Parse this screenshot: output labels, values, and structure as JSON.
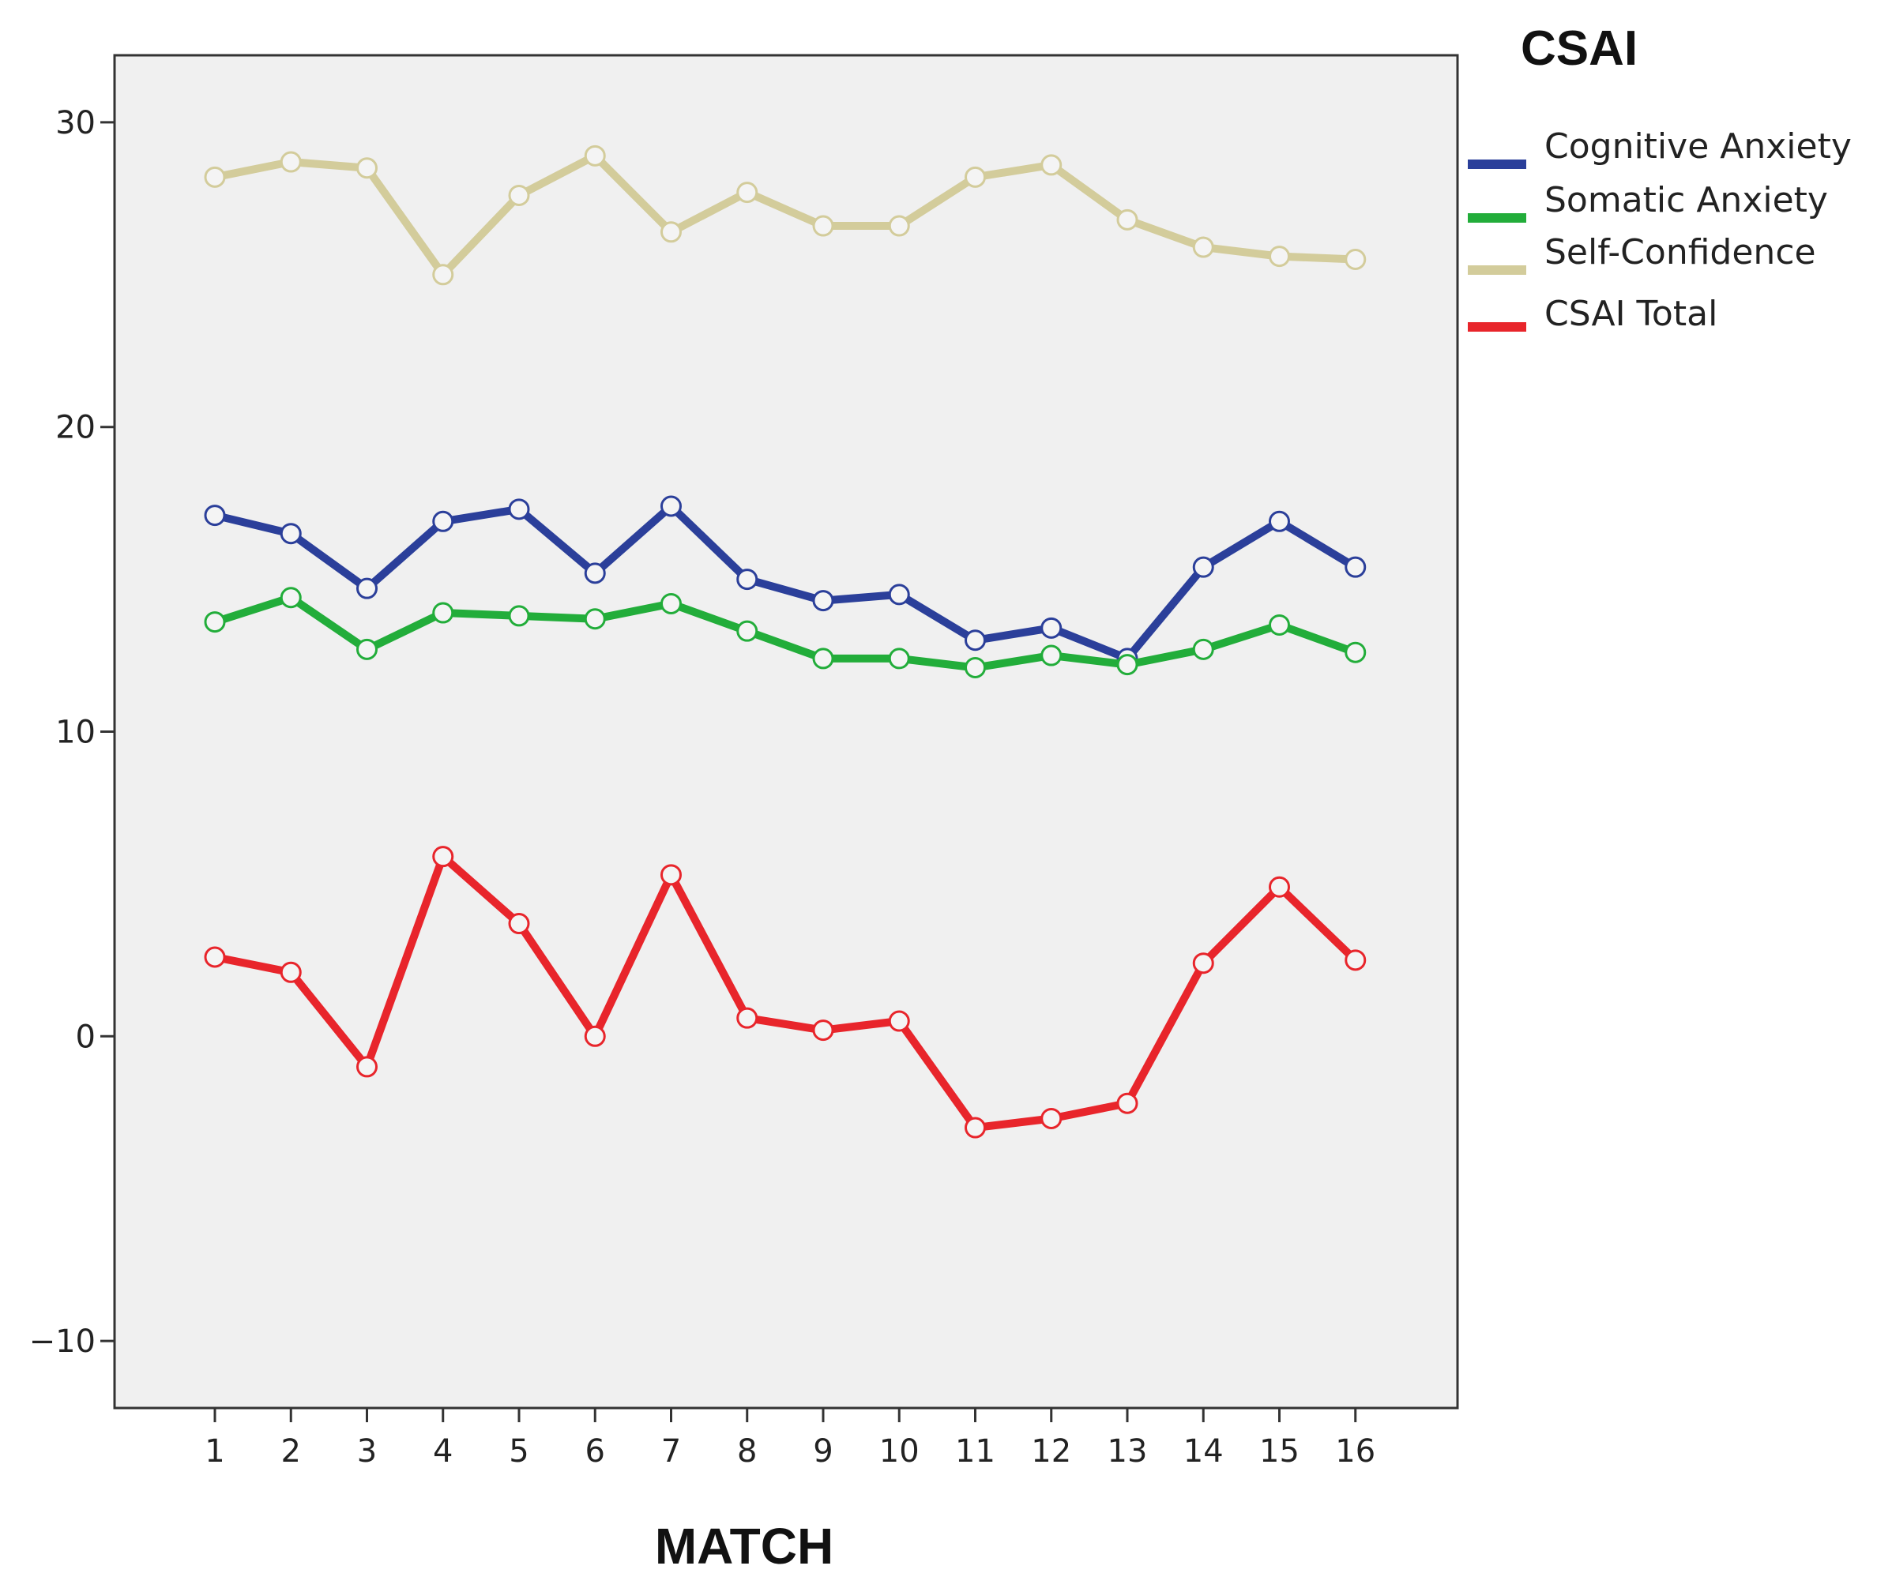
{
  "chart_data": {
    "type": "line",
    "title": "CSAI",
    "xlabel": "MATCH",
    "ylabel": "",
    "x": [
      1,
      2,
      3,
      4,
      5,
      6,
      7,
      8,
      9,
      10,
      11,
      12,
      13,
      14,
      15,
      16
    ],
    "ylim": [
      -12.2,
      32.2
    ],
    "yticks": [
      -10,
      0,
      10,
      20,
      30
    ],
    "grid": false,
    "legend_position": "top-right",
    "series": [
      {
        "name": "Cognitive Anxiety",
        "color": "#2b3f9a",
        "values": [
          17.1,
          16.5,
          14.7,
          16.9,
          17.3,
          15.2,
          17.4,
          15.0,
          14.3,
          14.5,
          13.0,
          13.4,
          12.4,
          15.4,
          16.9,
          15.4
        ]
      },
      {
        "name": "Somatic Anxiety",
        "color": "#22ad3a",
        "values": [
          13.6,
          14.4,
          12.7,
          13.9,
          13.8,
          13.7,
          14.2,
          13.3,
          12.4,
          12.4,
          12.1,
          12.5,
          12.2,
          12.7,
          13.5,
          12.6
        ]
      },
      {
        "name": "Self-Confidence",
        "color": "#d3cc9b",
        "values": [
          28.2,
          28.7,
          28.5,
          25.0,
          27.6,
          28.9,
          26.4,
          27.7,
          26.6,
          26.6,
          28.2,
          28.6,
          26.8,
          25.9,
          25.6,
          25.5
        ]
      },
      {
        "name": "CSAI Total",
        "color": "#e8252b",
        "values": [
          2.6,
          2.1,
          -1.0,
          5.9,
          3.7,
          0.0,
          5.3,
          0.6,
          0.2,
          0.5,
          -3.0,
          -2.7,
          -2.2,
          2.4,
          4.9,
          2.5
        ]
      }
    ]
  }
}
